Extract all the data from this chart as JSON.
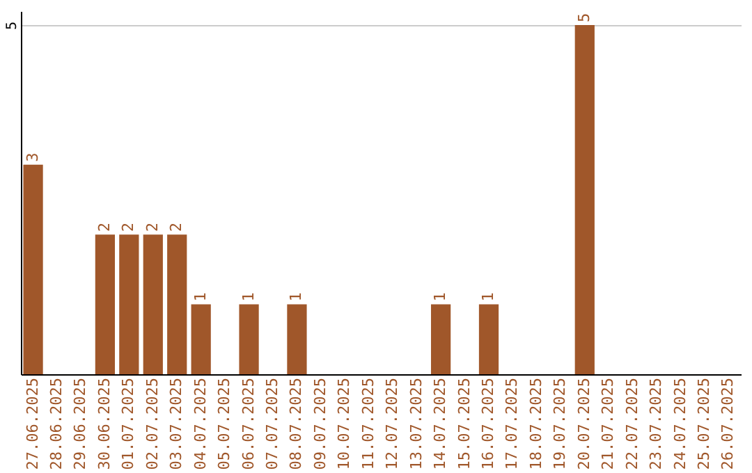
{
  "chart_data": {
    "type": "bar",
    "categories": [
      "27.06.2025",
      "28.06.2025",
      "29.06.2025",
      "30.06.2025",
      "01.07.2025",
      "02.07.2025",
      "03.07.2025",
      "04.07.2025",
      "05.07.2025",
      "06.07.2025",
      "07.07.2025",
      "08.07.2025",
      "09.07.2025",
      "10.07.2025",
      "11.07.2025",
      "12.07.2025",
      "13.07.2025",
      "14.07.2025",
      "15.07.2025",
      "16.07.2025",
      "17.07.2025",
      "18.07.2025",
      "19.07.2025",
      "20.07.2025",
      "21.07.2025",
      "22.07.2025",
      "23.07.2025",
      "24.07.2025",
      "25.07.2025",
      "26.07.2025"
    ],
    "values": [
      3,
      0,
      0,
      2,
      2,
      2,
      2,
      1,
      0,
      1,
      0,
      1,
      0,
      0,
      0,
      0,
      0,
      1,
      0,
      1,
      0,
      0,
      0,
      5,
      0,
      0,
      0,
      0,
      0,
      0
    ],
    "value_labels": [
      "3",
      null,
      null,
      "2",
      "2",
      "2",
      "2",
      "1",
      null,
      "1",
      null,
      "1",
      null,
      null,
      null,
      null,
      null,
      "1",
      null,
      "1",
      null,
      null,
      null,
      "5",
      null,
      null,
      null,
      null,
      null,
      null
    ],
    "color": "#a0572a",
    "ylim": [
      0,
      5.2
    ],
    "yticks": [
      5
    ],
    "grid": "y"
  }
}
